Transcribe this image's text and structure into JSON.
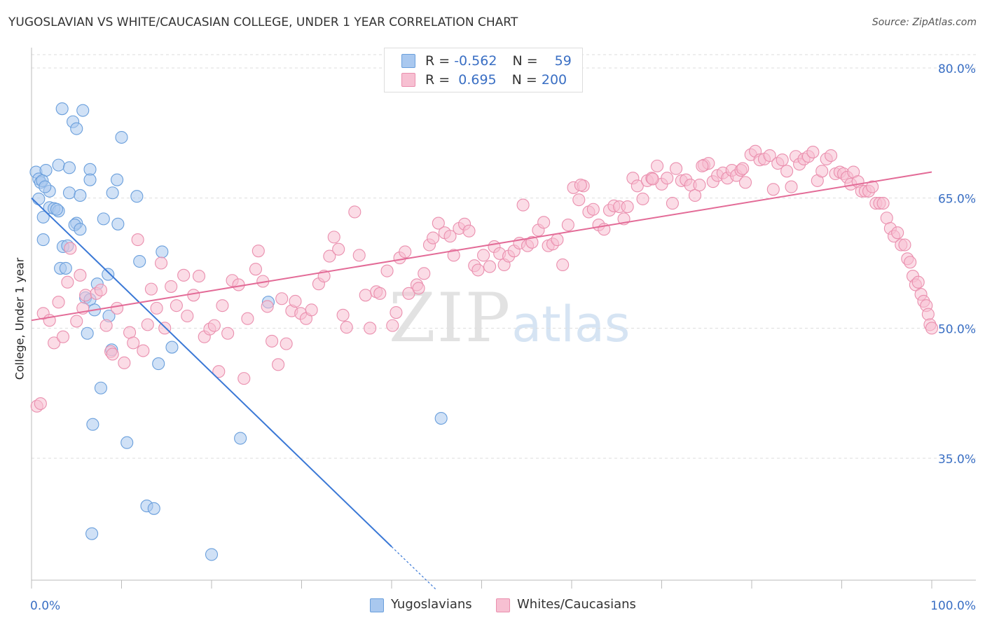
{
  "header": {
    "title": "YUGOSLAVIAN VS WHITE/CAUCASIAN COLLEGE, UNDER 1 YEAR CORRELATION CHART",
    "source": "Source: ZipAtlas.com"
  },
  "watermark": {
    "zip": "ZIP",
    "atlas": "atlas"
  },
  "legend": {
    "rows": [
      {
        "r_label": "R = ",
        "r_value": "-0.562",
        "n_label": "N = ",
        "n_value": "59",
        "color": "#a9c8ef",
        "border": "#6a9fdc"
      },
      {
        "r_label": "R = ",
        "r_value": " 0.695",
        "n_label": "N = ",
        "n_value": "200",
        "color": "#f7c0d2",
        "border": "#ea8fae"
      }
    ]
  },
  "bottom_legend": [
    {
      "label": "Yugoslavians",
      "color": "#a9c8ef",
      "border": "#6a9fdc"
    },
    {
      "label": "Whites/Caucasians",
      "color": "#f7c0d2",
      "border": "#ea8fae"
    }
  ],
  "chart_data": {
    "type": "scatter",
    "title": "YUGOSLAVIAN VS WHITE/CAUCASIAN COLLEGE, UNDER 1 YEAR CORRELATION CHART",
    "xlabel": "",
    "ylabel": "College, Under 1 year",
    "xlim": [
      0,
      100
    ],
    "ylim": [
      20,
      83
    ],
    "x_tick_labels": [
      "0.0%",
      "100.0%"
    ],
    "y_ticks": [
      35,
      50,
      65,
      80
    ],
    "y_tick_labels": [
      "35.0%",
      "50.0%",
      "65.0%",
      "80.0%"
    ],
    "grid": true,
    "legend_position": "top-center",
    "series": [
      {
        "name": "Yugoslavians",
        "color": "#6a9fdc",
        "fill": "#a9c8ef",
        "trend": {
          "x0": 0,
          "y0": 65.0,
          "x1": 40,
          "y1": 24.8,
          "dashed_to_x": 45,
          "dashed_to_y": 19.8
        },
        "points": [
          [
            3.4,
            75.3
          ],
          [
            5.7,
            75.1
          ],
          [
            4.6,
            73.8
          ],
          [
            5.0,
            73.0
          ],
          [
            10.0,
            72.0
          ],
          [
            0.5,
            68.0
          ],
          [
            1.6,
            68.2
          ],
          [
            3.0,
            68.8
          ],
          [
            4.2,
            68.5
          ],
          [
            0.8,
            67.2
          ],
          [
            1.0,
            66.8
          ],
          [
            6.5,
            68.3
          ],
          [
            6.5,
            67.1
          ],
          [
            9.5,
            67.1
          ],
          [
            2.0,
            65.8
          ],
          [
            4.2,
            65.6
          ],
          [
            5.4,
            65.3
          ],
          [
            9.0,
            65.6
          ],
          [
            11.7,
            65.2
          ],
          [
            0.8,
            64.9
          ],
          [
            2.0,
            63.9
          ],
          [
            2.5,
            63.8
          ],
          [
            3.0,
            63.5
          ],
          [
            1.3,
            62.8
          ],
          [
            8.0,
            62.6
          ],
          [
            5.0,
            62.1
          ],
          [
            4.8,
            61.9
          ],
          [
            9.6,
            62.0
          ],
          [
            5.4,
            61.4
          ],
          [
            1.3,
            60.2
          ],
          [
            3.5,
            59.4
          ],
          [
            4.0,
            59.5
          ],
          [
            14.5,
            58.8
          ],
          [
            12.0,
            57.7
          ],
          [
            3.2,
            56.9
          ],
          [
            3.8,
            56.9
          ],
          [
            8.5,
            56.2
          ],
          [
            7.3,
            55.1
          ],
          [
            6.0,
            53.5
          ],
          [
            6.5,
            53.3
          ],
          [
            26.3,
            53.0
          ],
          [
            7.0,
            52.1
          ],
          [
            8.6,
            51.4
          ],
          [
            6.2,
            49.4
          ],
          [
            8.9,
            47.5
          ],
          [
            15.6,
            47.8
          ],
          [
            14.1,
            45.9
          ],
          [
            7.7,
            43.1
          ],
          [
            45.5,
            39.6
          ],
          [
            6.8,
            38.9
          ],
          [
            10.6,
            36.8
          ],
          [
            23.2,
            37.3
          ],
          [
            12.8,
            29.5
          ],
          [
            13.6,
            29.2
          ],
          [
            6.7,
            26.3
          ],
          [
            20.0,
            23.9
          ],
          [
            1.2,
            67.0
          ],
          [
            1.5,
            66.3
          ],
          [
            2.8,
            63.7
          ]
        ]
      },
      {
        "name": "Whites/Caucasians",
        "color": "#ea8fae",
        "fill": "#f7c0d2",
        "trend": {
          "x0": 0,
          "y0": 50.9,
          "x1": 100,
          "y1": 68.0
        },
        "points": [
          [
            0.6,
            41.0
          ],
          [
            1.0,
            41.3
          ],
          [
            1.3,
            51.7
          ],
          [
            2.0,
            50.9
          ],
          [
            2.5,
            48.3
          ],
          [
            3.0,
            53.0
          ],
          [
            3.5,
            49.0
          ],
          [
            4.0,
            55.3
          ],
          [
            4.3,
            59.2
          ],
          [
            5.0,
            50.8
          ],
          [
            5.4,
            56.1
          ],
          [
            5.7,
            52.3
          ],
          [
            6.0,
            53.8
          ],
          [
            7.2,
            54.0
          ],
          [
            7.7,
            54.4
          ],
          [
            8.3,
            50.3
          ],
          [
            8.8,
            47.3
          ],
          [
            9.0,
            47.0
          ],
          [
            9.5,
            52.3
          ],
          [
            10.3,
            46.0
          ],
          [
            10.9,
            49.5
          ],
          [
            11.3,
            48.3
          ],
          [
            11.8,
            60.2
          ],
          [
            12.4,
            47.4
          ],
          [
            12.9,
            50.4
          ],
          [
            13.3,
            54.5
          ],
          [
            13.9,
            52.3
          ],
          [
            14.4,
            57.5
          ],
          [
            14.8,
            50.0
          ],
          [
            15.5,
            54.8
          ],
          [
            16.1,
            52.6
          ],
          [
            16.9,
            56.1
          ],
          [
            17.3,
            51.4
          ],
          [
            18.0,
            53.8
          ],
          [
            18.6,
            56.0
          ],
          [
            19.2,
            49.0
          ],
          [
            19.8,
            49.9
          ],
          [
            20.3,
            50.3
          ],
          [
            20.8,
            45.0
          ],
          [
            21.2,
            52.6
          ],
          [
            21.8,
            49.4
          ],
          [
            22.3,
            55.5
          ],
          [
            23.0,
            55.0
          ],
          [
            23.6,
            44.2
          ],
          [
            24.0,
            51.1
          ],
          [
            24.9,
            56.8
          ],
          [
            25.2,
            58.9
          ],
          [
            25.7,
            55.4
          ],
          [
            26.2,
            52.5
          ],
          [
            26.7,
            48.5
          ],
          [
            27.4,
            45.8
          ],
          [
            27.8,
            53.4
          ],
          [
            28.3,
            48.2
          ],
          [
            28.9,
            52.0
          ],
          [
            29.3,
            53.1
          ],
          [
            29.9,
            51.7
          ],
          [
            30.5,
            51.1
          ],
          [
            31.1,
            52.1
          ],
          [
            31.9,
            55.1
          ],
          [
            32.5,
            56.0
          ],
          [
            33.1,
            58.3
          ],
          [
            33.6,
            60.5
          ],
          [
            34.1,
            59.1
          ],
          [
            34.6,
            51.5
          ],
          [
            35.0,
            50.1
          ],
          [
            35.9,
            63.4
          ],
          [
            36.4,
            58.4
          ],
          [
            37.1,
            53.8
          ],
          [
            37.6,
            50.0
          ],
          [
            38.3,
            54.2
          ],
          [
            38.7,
            54.0
          ],
          [
            39.5,
            56.6
          ],
          [
            40.1,
            50.3
          ],
          [
            40.5,
            51.8
          ],
          [
            40.9,
            58.1
          ],
          [
            41.5,
            58.8
          ],
          [
            41.9,
            54.0
          ],
          [
            42.8,
            55.0
          ],
          [
            43.0,
            54.6
          ],
          [
            43.6,
            56.3
          ],
          [
            44.2,
            59.6
          ],
          [
            44.6,
            60.4
          ],
          [
            45.2,
            62.1
          ],
          [
            45.9,
            61.0
          ],
          [
            46.5,
            60.6
          ],
          [
            46.9,
            58.4
          ],
          [
            47.5,
            61.5
          ],
          [
            48.1,
            62.0
          ],
          [
            48.6,
            61.2
          ],
          [
            49.2,
            57.2
          ],
          [
            49.6,
            56.7
          ],
          [
            50.2,
            58.4
          ],
          [
            50.9,
            57.1
          ],
          [
            51.4,
            59.4
          ],
          [
            52.0,
            58.6
          ],
          [
            52.5,
            57.3
          ],
          [
            53.0,
            58.3
          ],
          [
            53.6,
            58.9
          ],
          [
            54.2,
            59.8
          ],
          [
            54.6,
            64.2
          ],
          [
            55.1,
            59.5
          ],
          [
            55.6,
            59.9
          ],
          [
            56.3,
            61.3
          ],
          [
            56.9,
            62.2
          ],
          [
            57.4,
            59.5
          ],
          [
            57.9,
            59.7
          ],
          [
            58.4,
            60.2
          ],
          [
            59.0,
            57.3
          ],
          [
            59.6,
            61.9
          ],
          [
            60.2,
            66.2
          ],
          [
            60.8,
            64.8
          ],
          [
            61.3,
            66.4
          ],
          [
            61.9,
            63.4
          ],
          [
            62.4,
            63.7
          ],
          [
            63.0,
            61.9
          ],
          [
            63.6,
            61.4
          ],
          [
            64.2,
            63.6
          ],
          [
            64.7,
            64.1
          ],
          [
            65.3,
            64.0
          ],
          [
            65.8,
            62.6
          ],
          [
            66.2,
            64.0
          ],
          [
            66.8,
            67.3
          ],
          [
            67.3,
            66.4
          ],
          [
            67.9,
            64.9
          ],
          [
            68.4,
            67.0
          ],
          [
            68.9,
            67.3
          ],
          [
            69.5,
            68.7
          ],
          [
            70.0,
            66.6
          ],
          [
            70.6,
            67.3
          ],
          [
            71.2,
            64.4
          ],
          [
            71.6,
            68.4
          ],
          [
            72.2,
            67.0
          ],
          [
            72.7,
            67.1
          ],
          [
            73.2,
            66.5
          ],
          [
            73.7,
            65.3
          ],
          [
            74.2,
            66.5
          ],
          [
            74.7,
            68.8
          ],
          [
            75.2,
            69.0
          ],
          [
            75.7,
            66.9
          ],
          [
            76.2,
            67.6
          ],
          [
            76.8,
            67.9
          ],
          [
            77.3,
            67.3
          ],
          [
            77.8,
            68.2
          ],
          [
            78.3,
            67.6
          ],
          [
            78.8,
            68.2
          ],
          [
            79.3,
            66.8
          ],
          [
            79.9,
            70.0
          ],
          [
            80.4,
            70.4
          ],
          [
            80.9,
            69.4
          ],
          [
            81.4,
            69.5
          ],
          [
            82.0,
            69.9
          ],
          [
            82.4,
            66.0
          ],
          [
            82.9,
            69.0
          ],
          [
            83.4,
            69.4
          ],
          [
            83.9,
            68.1
          ],
          [
            84.4,
            66.3
          ],
          [
            84.9,
            69.8
          ],
          [
            85.3,
            68.9
          ],
          [
            85.8,
            69.5
          ],
          [
            86.3,
            69.8
          ],
          [
            86.8,
            70.3
          ],
          [
            87.3,
            67.0
          ],
          [
            87.8,
            68.1
          ],
          [
            88.3,
            69.5
          ],
          [
            88.8,
            69.9
          ],
          [
            89.3,
            67.8
          ],
          [
            89.8,
            68.0
          ],
          [
            90.2,
            67.8
          ],
          [
            90.6,
            67.4
          ],
          [
            91.0,
            66.6
          ],
          [
            91.3,
            68.0
          ],
          [
            91.8,
            66.9
          ],
          [
            92.2,
            65.8
          ],
          [
            92.6,
            65.8
          ],
          [
            93.0,
            65.8
          ],
          [
            93.4,
            66.3
          ],
          [
            93.8,
            64.4
          ],
          [
            94.2,
            64.4
          ],
          [
            94.6,
            64.4
          ],
          [
            95.0,
            62.7
          ],
          [
            95.4,
            61.5
          ],
          [
            95.8,
            60.6
          ],
          [
            96.2,
            61.0
          ],
          [
            96.6,
            59.6
          ],
          [
            97.0,
            59.6
          ],
          [
            97.3,
            58.0
          ],
          [
            97.6,
            57.6
          ],
          [
            97.9,
            56.0
          ],
          [
            98.2,
            55.0
          ],
          [
            98.5,
            55.3
          ],
          [
            98.8,
            53.9
          ],
          [
            99.1,
            53.1
          ],
          [
            99.4,
            52.6
          ],
          [
            99.6,
            51.6
          ],
          [
            99.8,
            50.4
          ],
          [
            100.0,
            50.0
          ],
          [
            61.0,
            66.5
          ],
          [
            69.0,
            67.2
          ],
          [
            74.5,
            68.7
          ],
          [
            79.0,
            68.4
          ]
        ]
      }
    ]
  }
}
